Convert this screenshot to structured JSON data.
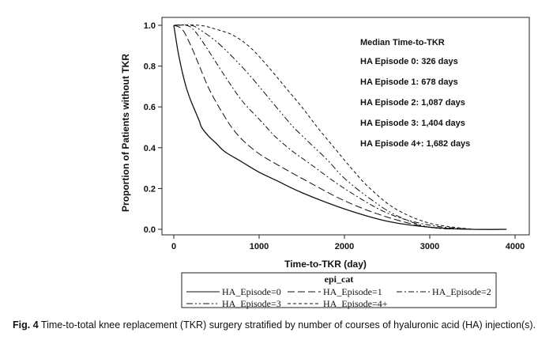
{
  "chart_data": {
    "type": "line",
    "xlabel": "Time-to-TKR (day)",
    "ylabel": "Proportion of Patients without TKR",
    "xlim": [
      0,
      4000
    ],
    "ylim": [
      0,
      1.0
    ],
    "x_ticks": [
      "0",
      "1000",
      "2000",
      "3000",
      "4000"
    ],
    "y_ticks": [
      "0.0",
      "0.2",
      "0.4",
      "0.6",
      "0.8",
      "1.0"
    ],
    "grid": false,
    "annotation": {
      "title": "Median Time-to-TKR",
      "lines": [
        "HA Episode 0: 326 days",
        "HA Episode 1: 678 days",
        "HA Episode 2: 1,087 days",
        "HA Episode 3: 1,404 days",
        "HA Episode 4+: 1,682 days"
      ]
    },
    "legend": {
      "title": "epi_cat",
      "position": "bottom",
      "entries": [
        "HA_Episode=0",
        "HA_Episode=1",
        "HA_Episode=2",
        "HA_Episode=3",
        "HA_Episode=4+"
      ]
    },
    "series": [
      {
        "name": "HA_Episode=0",
        "style": "solid",
        "x": [
          0,
          50,
          100,
          150,
          200,
          250,
          300,
          326,
          400,
          500,
          600,
          800,
          1000,
          1200,
          1500,
          2000,
          2500,
          3000,
          3500,
          3900
        ],
        "y": [
          1.0,
          0.87,
          0.77,
          0.69,
          0.63,
          0.58,
          0.53,
          0.5,
          0.46,
          0.42,
          0.38,
          0.33,
          0.28,
          0.24,
          0.18,
          0.1,
          0.04,
          0.01,
          0.0,
          0.0
        ]
      },
      {
        "name": "HA_Episode=1",
        "style": "longdash",
        "x": [
          0,
          100,
          200,
          300,
          400,
          500,
          600,
          678,
          800,
          1000,
          1200,
          1500,
          2000,
          2500,
          3000,
          3500
        ],
        "y": [
          1.0,
          0.98,
          0.9,
          0.8,
          0.7,
          0.62,
          0.55,
          0.5,
          0.44,
          0.37,
          0.32,
          0.25,
          0.14,
          0.06,
          0.01,
          0.0
        ]
      },
      {
        "name": "HA_Episode=2",
        "style": "dashdot",
        "x": [
          0,
          150,
          250,
          400,
          600,
          800,
          1000,
          1087,
          1200,
          1400,
          1600,
          2000,
          2500,
          3000,
          3500
        ],
        "y": [
          1.0,
          1.0,
          0.97,
          0.88,
          0.75,
          0.63,
          0.54,
          0.5,
          0.45,
          0.38,
          0.32,
          0.2,
          0.08,
          0.02,
          0.0
        ]
      },
      {
        "name": "HA_Episode=3",
        "style": "dashdotdot",
        "x": [
          0,
          200,
          300,
          500,
          700,
          900,
          1100,
          1300,
          1404,
          1600,
          1800,
          2000,
          2300,
          2600,
          3000,
          3500
        ],
        "y": [
          1.0,
          1.0,
          0.98,
          0.92,
          0.84,
          0.75,
          0.65,
          0.55,
          0.5,
          0.42,
          0.34,
          0.25,
          0.15,
          0.07,
          0.01,
          0.0
        ]
      },
      {
        "name": "HA_Episode=4+",
        "style": "shortdash",
        "x": [
          0,
          300,
          500,
          700,
          900,
          1100,
          1300,
          1500,
          1682,
          1900,
          2100,
          2300,
          2600,
          3000,
          3500
        ],
        "y": [
          1.0,
          1.0,
          0.98,
          0.95,
          0.89,
          0.8,
          0.7,
          0.6,
          0.5,
          0.39,
          0.29,
          0.2,
          0.1,
          0.03,
          0.0
        ]
      }
    ]
  },
  "caption": {
    "label": "Fig. 4",
    "text": "Time-to-total knee replacement (TKR) surgery stratified by number of courses of hyaluronic acid (HA) injection(s)."
  }
}
